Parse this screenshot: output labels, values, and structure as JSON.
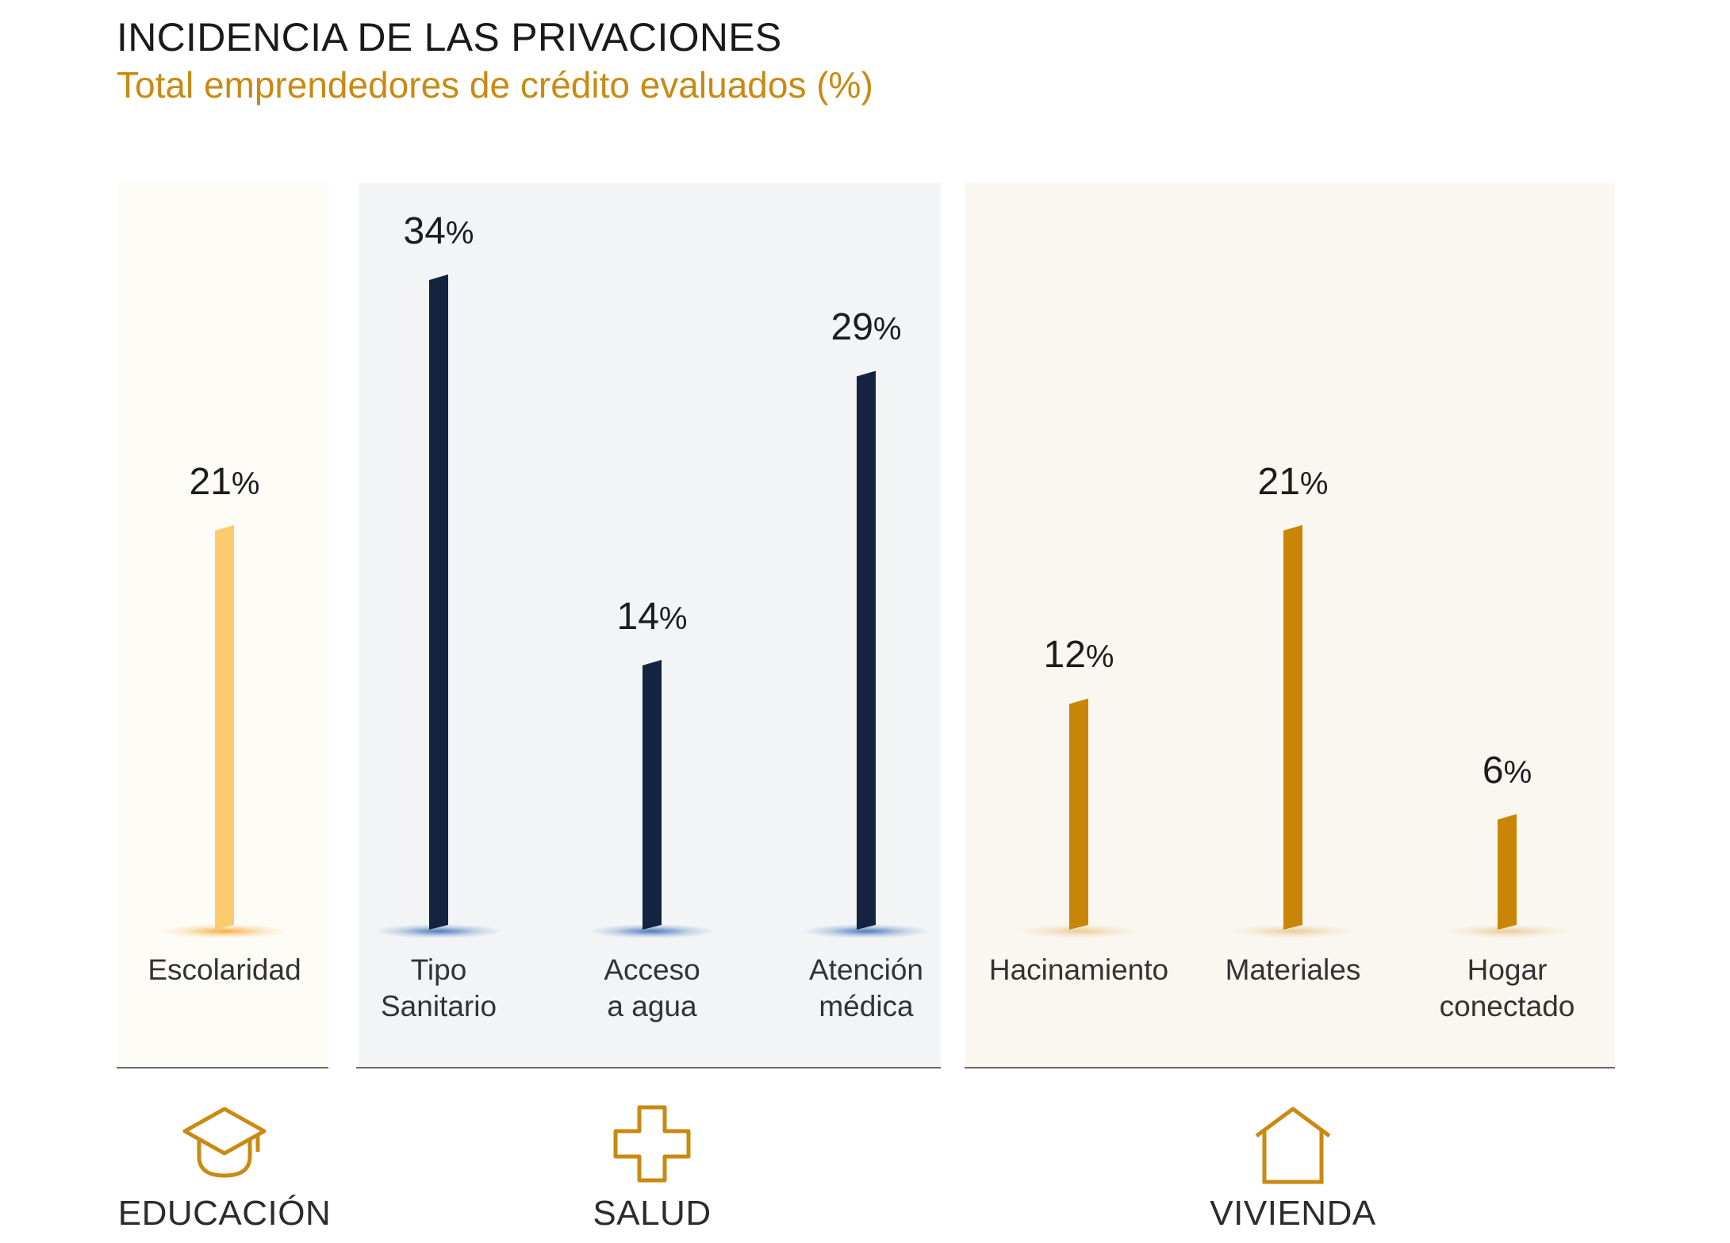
{
  "colors": {
    "educacion_bar": "#FDCB6E",
    "salud_bar": "#14233F",
    "vivienda_bar": "#C98505",
    "accent": "#C98A12",
    "educacion_bg": "#FEFCF7",
    "salud_bg": "#F2F4F6",
    "vivienda_bg": "#FAF7F1"
  },
  "chart_data": {
    "type": "bar",
    "title": "INCIDENCIA DE LAS PRIVACIONES",
    "subtitle": "Total emprendedores de crédito evaluados (%)",
    "unit": "%",
    "ylim": [
      0,
      34
    ],
    "grid": false,
    "categories": [
      "Escolaridad",
      "Tipo Sanitario",
      "Acceso a agua",
      "Atención médica",
      "Hacinamiento",
      "Materiales",
      "Hogar conectado"
    ],
    "groups": [
      {
        "name": "EDUCACIÓN",
        "icon": "graduation-cap-icon",
        "bars": [
          {
            "label_lines": [
              "Escolaridad"
            ],
            "value": 21
          }
        ]
      },
      {
        "name": "SALUD",
        "icon": "medical-cross-icon",
        "bars": [
          {
            "label_lines": [
              "Tipo",
              "Sanitario"
            ],
            "value": 34
          },
          {
            "label_lines": [
              "Acceso",
              "a agua"
            ],
            "value": 14
          },
          {
            "label_lines": [
              "Atención",
              "médica"
            ],
            "value": 29
          }
        ]
      },
      {
        "name": "VIVIENDA",
        "icon": "house-icon",
        "bars": [
          {
            "label_lines": [
              "Hacinamiento"
            ],
            "value": 12
          },
          {
            "label_lines": [
              "Materiales"
            ],
            "value": 21
          },
          {
            "label_lines": [
              "Hogar",
              "conectado"
            ],
            "value": 6
          }
        ]
      }
    ]
  }
}
